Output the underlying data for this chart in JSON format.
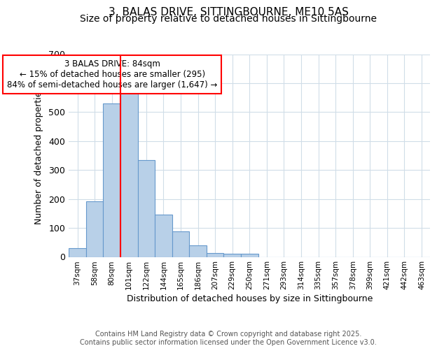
{
  "title_line1": "3, BALAS DRIVE, SITTINGBOURNE, ME10 5AS",
  "title_line2": "Size of property relative to detached houses in Sittingbourne",
  "xlabel": "Distribution of detached houses by size in Sittingbourne",
  "ylabel": "Number of detached properties",
  "bins": [
    "37sqm",
    "58sqm",
    "80sqm",
    "101sqm",
    "122sqm",
    "144sqm",
    "165sqm",
    "186sqm",
    "207sqm",
    "229sqm",
    "250sqm",
    "271sqm",
    "293sqm",
    "314sqm",
    "335sqm",
    "357sqm",
    "378sqm",
    "399sqm",
    "421sqm",
    "442sqm",
    "463sqm"
  ],
  "values": [
    30,
    192,
    530,
    570,
    335,
    147,
    87,
    40,
    13,
    11,
    10,
    0,
    0,
    0,
    0,
    0,
    0,
    0,
    0,
    0,
    0
  ],
  "bar_color": "#b8d0e8",
  "bar_edge_color": "#6699cc",
  "red_line_x": 2.5,
  "annotation_text": "3 BALAS DRIVE: 84sqm\n← 15% of detached houses are smaller (295)\n84% of semi-detached houses are larger (1,647) →",
  "ylim": [
    0,
    700
  ],
  "yticks": [
    0,
    100,
    200,
    300,
    400,
    500,
    600,
    700
  ],
  "background_color": "#ffffff",
  "plot_bg_color": "#ffffff",
  "grid_color": "#d0dde8",
  "footer": "Contains HM Land Registry data © Crown copyright and database right 2025.\nContains public sector information licensed under the Open Government Licence v3.0.",
  "title_fontsize": 11,
  "subtitle_fontsize": 10,
  "footer_fontsize": 7
}
